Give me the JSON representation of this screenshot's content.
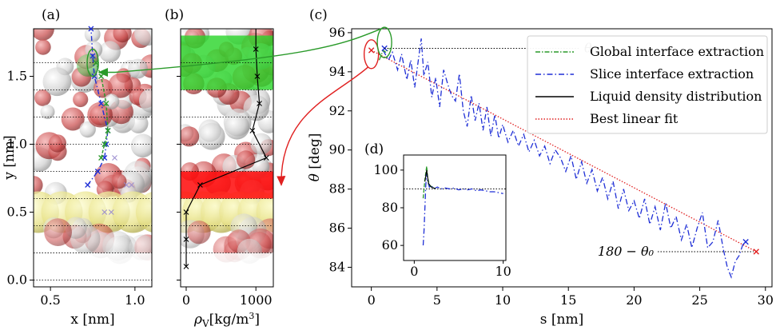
{
  "chart_data": [
    {
      "id": "a",
      "type": "scatter",
      "panel_label": "(a)",
      "xlabel": "x [nm]",
      "ylabel": "y [nm]",
      "xlim": [
        0.4,
        1.1
      ],
      "ylim": [
        -0.05,
        1.85
      ],
      "xticks": [
        "0.5",
        "1.0"
      ],
      "xtick_values": [
        0.5,
        1.0
      ],
      "yticks": [
        "0.0",
        "0.5",
        "1.0",
        "1.5"
      ],
      "ytick_values": [
        0.0,
        0.5,
        1.0,
        1.5
      ],
      "hgrid_lines": [
        0.0,
        0.2,
        0.4,
        0.6,
        0.8,
        1.0,
        1.2,
        1.4,
        1.6
      ],
      "series": [
        {
          "color": "#1f2fd6",
          "x": [
            0.72,
            0.78,
            0.82,
            0.83,
            0.84,
            0.8,
            0.76,
            0.75,
            0.74
          ],
          "y": [
            0.7,
            0.8,
            0.9,
            1.0,
            1.1,
            1.3,
            1.5,
            1.65,
            1.85
          ]
        },
        {
          "color": "#2a9a2a",
          "x": [
            0.8,
            0.82,
            0.84,
            0.83,
            0.8,
            0.77
          ],
          "y": [
            0.9,
            1.0,
            1.1,
            1.3,
            1.5,
            1.6
          ]
        }
      ],
      "faint_markers": {
        "x": [
          0.88,
          0.95,
          0.98,
          0.82,
          0.86
        ],
        "y": [
          0.9,
          0.7,
          0.7,
          0.5,
          0.5
        ]
      },
      "highlight_ellipse": {
        "x": 0.75,
        "y": 1.6
      }
    },
    {
      "id": "b",
      "type": "line",
      "panel_label": "(b)",
      "xlabel": "ρ_V [kg/m³]",
      "ylabel": "",
      "xlim": [
        -80,
        1250
      ],
      "ylim": [
        -0.05,
        1.85
      ],
      "xticks": [
        "0",
        "1000"
      ],
      "xtick_values": [
        0,
        1000
      ],
      "band_green": [
        1.4,
        1.8
      ],
      "band_red": [
        0.6,
        0.8
      ],
      "hgrid_lines": [
        0.2,
        0.4,
        0.6,
        0.8,
        1.0,
        1.2,
        1.4,
        1.6
      ],
      "x": [
        0,
        0,
        0,
        200,
        1150,
        950,
        1050,
        1020,
        1000,
        1000
      ],
      "y": [
        0.1,
        0.3,
        0.5,
        0.7,
        0.9,
        1.1,
        1.3,
        1.5,
        1.7,
        1.85
      ]
    },
    {
      "id": "c",
      "type": "line",
      "panel_label": "(c)",
      "xlabel": "s [nm]",
      "ylabel": "θ [deg]",
      "xlim": [
        -1.5,
        30.5
      ],
      "ylim": [
        83.0,
        96.2
      ],
      "xticks": [
        "0",
        "5",
        "10",
        "15",
        "20",
        "25",
        "30"
      ],
      "xtick_values": [
        0,
        5,
        10,
        15,
        20,
        25,
        30
      ],
      "yticks": [
        "84",
        "86",
        "88",
        "90",
        "92",
        "94",
        "96"
      ],
      "ytick_values": [
        84,
        86,
        88,
        90,
        92,
        94,
        96
      ],
      "legend": [
        "Global interface extraction",
        "Slice interface extraction",
        "Liquid density distribution",
        "Best linear fit"
      ],
      "legend_position": "top-right",
      "annotations": [
        "θ₀",
        "180 − θ₀"
      ],
      "theta0_value": 95.2,
      "end_value": 84.8,
      "fit": {
        "x": [
          0.0,
          29.3
        ],
        "y": [
          95.1,
          84.8
        ]
      },
      "global_series": {
        "x": [
          0.6,
          0.9,
          1.1,
          1.4
        ],
        "y": [
          94.6,
          95.1,
          95.0,
          95.2
        ]
      },
      "slice_series": {
        "x": [
          0.9,
          1.3,
          1.6,
          2.0,
          2.3,
          2.7,
          3.0,
          3.3,
          3.6,
          3.8,
          4.0,
          4.3,
          4.6,
          4.9,
          5.2,
          5.5,
          5.8,
          6.1,
          6.4,
          6.7,
          7.0,
          7.3,
          7.6,
          7.9,
          8.2,
          8.5,
          8.8,
          9.1,
          9.4,
          9.7,
          10.0,
          10.4,
          10.8,
          11.2,
          11.6,
          12.0,
          12.4,
          12.8,
          13.2,
          13.6,
          14.0,
          14.4,
          14.8,
          15.2,
          15.6,
          16.0,
          16.4,
          16.8,
          17.2,
          17.6,
          18.0,
          18.4,
          18.8,
          19.2,
          19.6,
          20.0,
          20.4,
          20.8,
          21.2,
          21.6,
          22.0,
          22.4,
          22.8,
          23.2,
          23.6,
          24.0,
          24.4,
          24.8,
          25.2,
          25.6,
          26.0,
          26.4,
          26.8,
          27.1,
          27.4,
          27.7,
          28.0,
          28.3,
          28.5
        ],
        "y": [
          95.1,
          94.6,
          95.0,
          94.1,
          94.9,
          93.6,
          94.6,
          93.2,
          94.7,
          95.7,
          93.8,
          94.5,
          92.7,
          93.7,
          92.2,
          94.1,
          93.4,
          92.8,
          92.5,
          93.9,
          92.0,
          91.2,
          92.8,
          91.5,
          92.4,
          91.0,
          92.2,
          90.7,
          91.8,
          90.6,
          91.3,
          90.4,
          91.0,
          90.2,
          90.8,
          89.9,
          90.5,
          89.7,
          90.2,
          89.3,
          90.0,
          89.6,
          88.9,
          89.7,
          88.5,
          89.4,
          88.3,
          89.0,
          87.9,
          88.6,
          87.5,
          88.4,
          87.0,
          88.0,
          86.9,
          87.4,
          86.5,
          87.5,
          86.2,
          87.1,
          85.9,
          87.3,
          86.0,
          86.6,
          85.4,
          86.2,
          85.0,
          86.0,
          86.8,
          85.0,
          85.3,
          86.4,
          84.9,
          84.0,
          83.5,
          84.3,
          84.6,
          85.2,
          85.3
        ]
      },
      "markers": [
        {
          "x": 0.0,
          "y": 95.1,
          "color": "#e02020"
        },
        {
          "x": 1.0,
          "y": 95.2,
          "color": "#1f2fd6"
        },
        {
          "x": 28.5,
          "y": 85.3,
          "color": "#1f2fd6"
        },
        {
          "x": 29.3,
          "y": 84.8,
          "color": "#e02020"
        }
      ],
      "colors": {
        "global": "#2a9a2a",
        "slice": "#1f2fd6",
        "density": "#000000",
        "fit": "#e02020",
        "ellipse_red": "#e02020",
        "ellipse_green": "#2a9a2a"
      }
    },
    {
      "id": "d",
      "type": "line",
      "panel_label": "(d)",
      "inset": true,
      "xlim": [
        -1.2,
        10.3
      ],
      "ylim": [
        52,
        108
      ],
      "xticks": [
        "0",
        "10"
      ],
      "xtick_values": [
        0,
        10
      ],
      "yticks": [
        "60",
        "80",
        "100"
      ],
      "ytick_values": [
        60,
        80,
        100
      ],
      "ref_line": 90,
      "slice_series": {
        "x": [
          1.0,
          1.1,
          1.2,
          1.3,
          1.4,
          1.5,
          1.7,
          1.9,
          2.2,
          2.6,
          3.0,
          3.5,
          4.0,
          4.5,
          5.0,
          5.5,
          6.0,
          6.5,
          7.0,
          7.5,
          8.0,
          8.5,
          9.0,
          9.5,
          10.0
        ],
        "y": [
          60,
          68,
          80,
          92,
          98,
          94,
          91,
          92,
          90,
          91,
          90,
          90.5,
          90,
          90.5,
          89.5,
          90,
          89.5,
          90,
          89,
          89.5,
          89,
          88.5,
          88.5,
          88,
          87.5
        ]
      },
      "global_series": {
        "x": [
          1.0,
          1.2,
          1.4,
          1.5,
          1.7,
          2.0,
          2.4
        ],
        "y": [
          85,
          95,
          102,
          96,
          92,
          91,
          90
        ]
      },
      "density_series": {
        "x": [
          1.2,
          1.4,
          1.6,
          1.9,
          2.4
        ],
        "y": [
          94,
          100,
          93,
          91,
          90
        ]
      }
    }
  ]
}
